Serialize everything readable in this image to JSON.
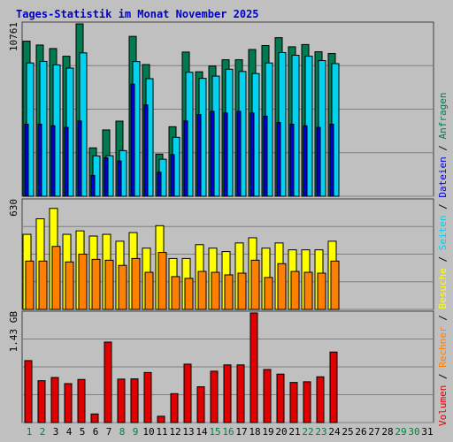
{
  "title": "Tages-Statistik im Monat November 2025",
  "colors": {
    "background": "#c0c0c0",
    "title": "#0000cc",
    "anfragen": "#007a4f",
    "dateien": "#0000dd",
    "seiten": "#00d2f0",
    "besuche": "#ffff00",
    "rechner": "#ff8000",
    "volumen": "#e00000",
    "grid": "#808080",
    "weekday": "#000000",
    "weekend": "#008040"
  },
  "legend": [
    {
      "text": "Volumen",
      "color_key": "volumen"
    },
    {
      "text": " / ",
      "color_key": "weekday"
    },
    {
      "text": "Rechner",
      "color_key": "rechner"
    },
    {
      "text": " / ",
      "color_key": "weekday"
    },
    {
      "text": "Besuche",
      "color_key": "besuche"
    },
    {
      "text": " / ",
      "color_key": "weekday"
    },
    {
      "text": "Seiten",
      "color_key": "seiten"
    },
    {
      "text": " / ",
      "color_key": "weekday"
    },
    {
      "text": "Dateien",
      "color_key": "dateien"
    },
    {
      "text": " / ",
      "color_key": "weekday"
    },
    {
      "text": "Anfragen",
      "color_key": "anfragen"
    }
  ],
  "chart_data": {
    "type": "bar",
    "title": "Tages-Statistik im Monat November 2025",
    "days": [
      "1",
      "2",
      "3",
      "4",
      "5",
      "6",
      "7",
      "8",
      "9",
      "10",
      "11",
      "12",
      "13",
      "14",
      "15",
      "16",
      "17",
      "18",
      "19",
      "20",
      "21",
      "22",
      "23",
      "24",
      "25",
      "26",
      "27",
      "28",
      "29",
      "30",
      "31"
    ],
    "weekend_days": [
      1,
      2,
      8,
      9,
      15,
      16,
      22,
      23,
      29,
      30
    ],
    "panels": [
      {
        "id": "top",
        "max_label": "10761",
        "ymax": 10761,
        "series": [
          {
            "name": "Anfragen",
            "color_key": "anfragen",
            "values": [
              9680,
              9440,
              9220,
              8740,
              10761,
              3020,
              4140,
              4690,
              9980,
              8220,
              2630,
              4340,
              9000,
              7770,
              8130,
              8520,
              8520,
              9160,
              9410,
              9900,
              9330,
              9470,
              9020,
              8910
            ]
          },
          {
            "name": "Seiten",
            "color_key": "seiten",
            "values": [
              8320,
              8420,
              8200,
              8000,
              8950,
              2520,
              2530,
              2850,
              8410,
              7340,
              2310,
              3680,
              7740,
              7360,
              7500,
              7930,
              7790,
              7660,
              8320,
              8970,
              8800,
              8740,
              8470,
              8280
            ]
          },
          {
            "name": "Dateien",
            "color_key": "dateien",
            "values": [
              4500,
              4500,
              4400,
              4300,
              4700,
              1300,
              2400,
              2200,
              7000,
              5700,
              1500,
              2600,
              4700,
              5100,
              5300,
              5200,
              5300,
              5200,
              5000,
              4600,
              4500,
              4400,
              4300,
              4500
            ]
          }
        ]
      },
      {
        "id": "middle",
        "max_label": "630",
        "ymax": 630,
        "series": [
          {
            "name": "Besuche",
            "color_key": "besuche",
            "values": [
              435,
              525,
              585,
              435,
              455,
              425,
              435,
              395,
              445,
              355,
              485,
              295,
              295,
              375,
              355,
              335,
              385,
              415,
              355,
              385,
              345,
              345,
              345,
              395
            ]
          },
          {
            "name": "Rechner",
            "color_key": "rechner",
            "values": [
              280,
              280,
              365,
              275,
              320,
              290,
              285,
              255,
              295,
              215,
              330,
              190,
              180,
              220,
              215,
              200,
              210,
              285,
              185,
              265,
              220,
              215,
              210,
              280
            ]
          }
        ]
      },
      {
        "id": "bottom",
        "max_label": "1.43 GB",
        "ymax": 1.43,
        "series": [
          {
            "name": "Volumen",
            "color_key": "volumen",
            "values": [
              0.808,
              0.546,
              0.588,
              0.508,
              0.562,
              0.112,
              1.05,
              0.567,
              0.57,
              0.653,
              0.082,
              0.377,
              0.762,
              0.467,
              0.67,
              0.752,
              0.752,
              1.43,
              0.692,
              0.632,
              0.523,
              0.532,
              0.597,
              0.92
            ]
          }
        ]
      }
    ]
  }
}
